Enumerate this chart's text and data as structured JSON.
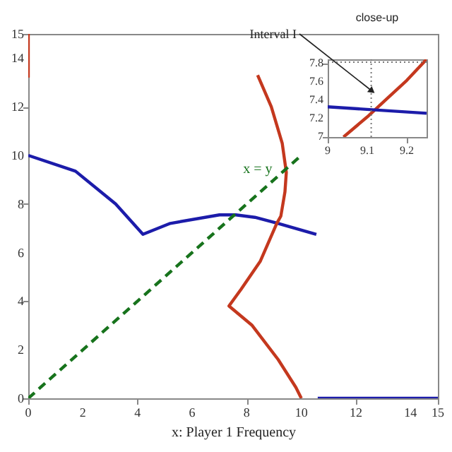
{
  "chart_data": [
    {
      "type": "line",
      "xlabel": "x: Player 1 Frequency",
      "xlim": [
        0,
        15
      ],
      "xticks": [
        0,
        2,
        4,
        6,
        8,
        10,
        12,
        14,
        15
      ],
      "ylim": [
        0,
        15
      ],
      "yticks": [
        0,
        2,
        4,
        6,
        8,
        10,
        12,
        14,
        15
      ],
      "series": [
        {
          "color": "#1c1caa",
          "line_style": "solid",
          "x": [
            0,
            1.73,
            3.2,
            4.2,
            5.2,
            7.0,
            7.6,
            8.3,
            9.15,
            10.55
          ],
          "values": [
            10,
            9.35,
            8,
            6.75,
            7.2,
            7.55,
            7.55,
            7.45,
            7.2,
            6.75
          ]
        },
        {
          "color": "#1c1caa",
          "line_style": "solid",
          "x": [
            10.6,
            15
          ],
          "values": [
            0,
            0
          ]
        },
        {
          "color": "#c4381e",
          "line_style": "solid",
          "x": [
            0,
            0
          ],
          "values": [
            13.2,
            15
          ]
        },
        {
          "color": "#c4381e",
          "line_style": "solid",
          "x": [
            8.4,
            8.9,
            9.3,
            9.45,
            9.4,
            9.25,
            9.1,
            8.5,
            7.8,
            7.35,
            8.2,
            9.15,
            9.8,
            10
          ],
          "values": [
            13.3,
            12,
            10.5,
            9.3,
            8.5,
            7.5,
            7.2,
            5.65,
            4.5,
            3.8,
            3.0,
            1.6,
            0.45,
            0
          ]
        },
        {
          "color": "#17731c",
          "line_style": "dashed",
          "x": [
            0,
            10
          ],
          "values": [
            0,
            10
          ]
        }
      ],
      "annotations": [
        "x = y"
      ]
    },
    {
      "type": "line",
      "title": "close-up",
      "xlim": [
        9,
        9.25
      ],
      "xticks": [
        9,
        9.1,
        9.2
      ],
      "ylim": [
        7,
        7.85
      ],
      "yticks": [
        7,
        7.2,
        7.4,
        7.6,
        7.8
      ],
      "series": [
        {
          "color": "#c4381e",
          "line_style": "solid",
          "x": [
            9.04,
            9.1,
            9.15,
            9.2,
            9.25
          ],
          "values": [
            7,
            7.22,
            7.42,
            7.62,
            7.85
          ]
        },
        {
          "color": "#1c1caa",
          "line_style": "solid",
          "x": [
            9,
            9.25
          ],
          "values": [
            7.33,
            7.26
          ]
        }
      ],
      "ref_lines": [
        {
          "axis": "x",
          "value": 9.11,
          "label": "Interval I",
          "line_style": "dotted"
        },
        {
          "axis": "y",
          "value": 7.82,
          "line_style": "dotted"
        }
      ]
    }
  ]
}
